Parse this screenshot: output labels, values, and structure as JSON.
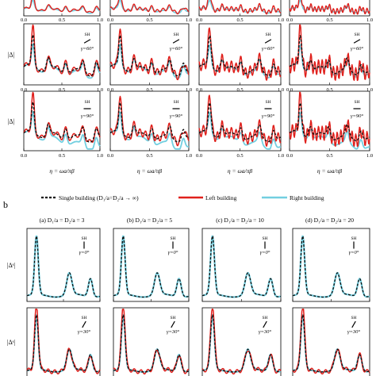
{
  "figure": {
    "panel_b_label": "b",
    "legend": [
      {
        "label": "Single building (D₁/a=D₂/a → ∞)",
        "color": "#111111",
        "style": "dashed"
      },
      {
        "label": "Left building",
        "color": "#e0201c",
        "style": "solid"
      },
      {
        "label": "Right building",
        "color": "#72cfe0",
        "style": "solid"
      }
    ],
    "column_titles": [
      "(a)  D₁/a = D₂/a = 3",
      "(b)  D₁/a = D₂/a = 5",
      "(c)  D₁/a = D₂/a = 10",
      "(d)  D₁/a = D₂/a = 20"
    ],
    "x_axis_label": "η = ωa/πβ",
    "wave_label": "SH",
    "angles": [
      "γ=60°",
      "γ=90°",
      "γ=0°",
      "γ=30°"
    ],
    "y_labels_top": [
      "|Δ|",
      "|Δ|"
    ],
    "y_labels_bottom": [
      "|Δˢ|",
      "|Δˢ|"
    ],
    "tick_labels": {
      "x0": "0.0",
      "x05": "0.5",
      "x1": "1.0"
    }
  },
  "chart_data": [
    {
      "type": "line",
      "panel": "a",
      "row": "γ=60°",
      "column": "(a) D1/a=D2/a=3",
      "x": [
        0.0,
        0.05,
        0.08,
        0.12,
        0.16,
        0.2,
        0.3,
        0.4,
        0.5,
        0.6,
        0.7,
        0.8,
        0.9,
        1.0
      ],
      "series": [
        {
          "name": "Single building",
          "values": [
            0.4,
            0.9,
            1.0,
            0.55,
            0.45,
            0.38,
            0.33,
            0.3,
            0.28,
            0.27,
            0.26,
            0.25,
            0.24,
            0.24
          ]
        },
        {
          "name": "Left building",
          "values": [
            0.4,
            1.2,
            1.55,
            0.6,
            0.5,
            0.4,
            0.35,
            0.32,
            0.3,
            0.29,
            0.28,
            0.27,
            0.26,
            0.25
          ]
        },
        {
          "name": "Right building",
          "values": [
            0.4,
            0.8,
            0.9,
            0.5,
            0.42,
            0.36,
            0.32,
            0.29,
            0.27,
            0.26,
            0.25,
            0.24,
            0.23,
            0.23
          ]
        }
      ]
    },
    {
      "type": "line",
      "panel": "a",
      "row": "γ=90°",
      "column": "(a) D1/a=D2/a=3",
      "x": [
        0.0,
        0.05,
        0.08,
        0.12,
        0.16,
        0.2,
        0.3,
        0.4,
        0.5,
        0.6,
        0.7,
        0.8,
        0.9,
        1.0
      ],
      "series": [
        {
          "name": "Single building",
          "values": [
            0.4,
            1.0,
            1.05,
            0.6,
            0.45,
            0.4,
            0.35,
            0.32,
            0.3,
            0.28,
            0.27,
            0.26,
            0.25,
            0.24
          ]
        },
        {
          "name": "Left building",
          "values": [
            0.4,
            1.2,
            1.5,
            0.7,
            0.5,
            0.45,
            0.4,
            0.37,
            0.34,
            0.32,
            0.3,
            0.29,
            0.28,
            0.27
          ]
        },
        {
          "name": "Right building",
          "values": [
            0.4,
            0.7,
            0.8,
            0.35,
            0.25,
            0.2,
            0.17,
            0.15,
            0.14,
            0.13,
            0.12,
            0.12,
            0.11,
            0.11
          ]
        }
      ]
    },
    {
      "type": "line",
      "panel": "b",
      "row": "γ=0°",
      "column": "(a) D1/a=D2/a=3",
      "x": [
        0.0,
        0.05,
        0.1,
        0.15,
        0.2,
        0.3,
        0.4,
        0.5,
        0.6,
        0.7,
        0.8,
        0.9,
        1.0
      ],
      "series": [
        {
          "name": "Single building",
          "values": [
            0.05,
            0.15,
            0.4,
            0.9,
            0.3,
            0.25,
            0.3,
            0.2,
            0.4,
            0.2,
            0.15,
            0.35,
            0.1
          ]
        },
        {
          "name": "Left building",
          "values": [
            0.05,
            0.15,
            0.4,
            0.85,
            0.3,
            0.25,
            0.3,
            0.2,
            0.35,
            0.2,
            0.15,
            0.3,
            0.1
          ]
        },
        {
          "name": "Right building",
          "values": [
            0.05,
            0.15,
            0.4,
            0.85,
            0.3,
            0.25,
            0.3,
            0.2,
            0.35,
            0.2,
            0.15,
            0.3,
            0.1
          ]
        }
      ]
    },
    {
      "type": "line",
      "panel": "b",
      "row": "γ=30°",
      "column": "(a) D1/a=D2/a=3",
      "x": [
        0.0,
        0.05,
        0.1,
        0.15,
        0.2,
        0.3,
        0.4,
        0.5,
        0.6,
        0.7,
        0.8,
        0.9,
        1.0
      ],
      "series": [
        {
          "name": "Single building",
          "values": [
            0.05,
            0.2,
            0.5,
            0.9,
            0.35,
            0.3,
            0.35,
            0.25,
            0.3,
            0.2,
            0.2,
            0.3,
            0.1
          ]
        },
        {
          "name": "Left building",
          "values": [
            0.05,
            0.2,
            0.6,
            1.3,
            0.4,
            0.3,
            0.35,
            0.3,
            0.35,
            0.25,
            0.2,
            0.35,
            0.1
          ]
        },
        {
          "name": "Right building",
          "values": [
            0.05,
            0.2,
            0.5,
            0.9,
            0.35,
            0.3,
            0.35,
            0.25,
            0.3,
            0.2,
            0.2,
            0.3,
            0.1
          ]
        }
      ]
    }
  ]
}
